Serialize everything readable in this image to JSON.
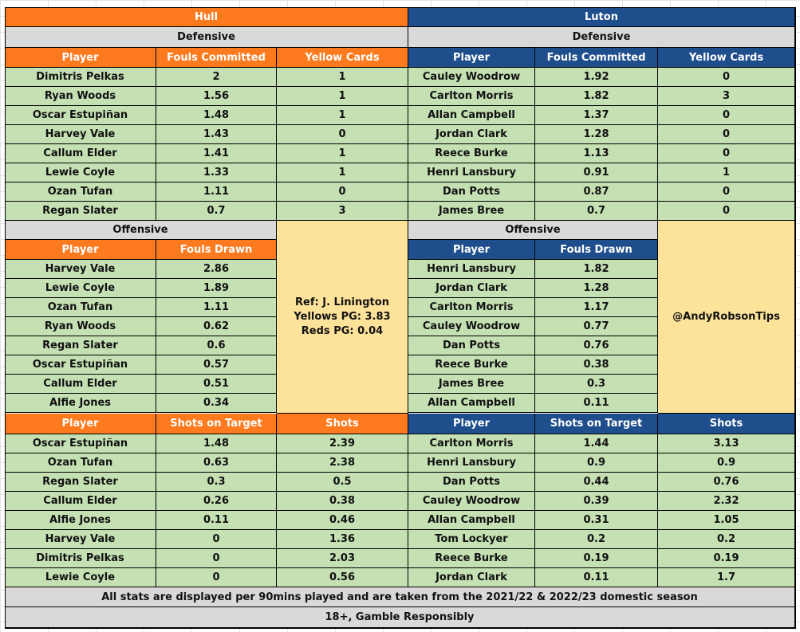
{
  "hull": {
    "name": "Hull",
    "defensive_title": "Defensive",
    "defensive_headers": [
      "Player",
      "Fouls Committed",
      "Yellow Cards"
    ],
    "defensive_rows": [
      [
        "Dimitris Pelkas",
        "2",
        "1"
      ],
      [
        "Ryan Woods",
        "1.56",
        "1"
      ],
      [
        "Oscar Estupiñan",
        "1.48",
        "1"
      ],
      [
        "Harvey Vale",
        "1.43",
        "0"
      ],
      [
        "Callum Elder",
        "1.41",
        "1"
      ],
      [
        "Lewie Coyle",
        "1.33",
        "1"
      ],
      [
        "Ozan Tufan",
        "1.11",
        "0"
      ],
      [
        "Regan Slater",
        "0.7",
        "3"
      ]
    ],
    "offensive_title": "Offensive",
    "offensive_headers": [
      "Player",
      "Fouls Drawn"
    ],
    "offensive_rows": [
      [
        "Harvey Vale",
        "2.86"
      ],
      [
        "Lewie Coyle",
        "1.89"
      ],
      [
        "Ozan Tufan",
        "1.11"
      ],
      [
        "Ryan Woods",
        "0.62"
      ],
      [
        "Regan Slater",
        "0.6"
      ],
      [
        "Oscar Estupiñan",
        "0.57"
      ],
      [
        "Callum Elder",
        "0.51"
      ],
      [
        "Alfie Jones",
        "0.34"
      ]
    ],
    "shots_headers": [
      "Player",
      "Shots on Target",
      "Shots"
    ],
    "shots_rows": [
      [
        "Oscar Estupiñan",
        "1.48",
        "2.39"
      ],
      [
        "Ozan Tufan",
        "0.63",
        "2.38"
      ],
      [
        "Regan Slater",
        "0.3",
        "0.5"
      ],
      [
        "Callum Elder",
        "0.26",
        "0.38"
      ],
      [
        "Alfie Jones",
        "0.11",
        "0.46"
      ],
      [
        "Harvey Vale",
        "0",
        "1.36"
      ],
      [
        "Dimitris Pelkas",
        "0",
        "2.03"
      ],
      [
        "Lewie Coyle",
        "0",
        "0.56"
      ]
    ]
  },
  "luton": {
    "name": "Luton",
    "defensive_title": "Defensive",
    "defensive_headers": [
      "Player",
      "Fouls Committed",
      "Yellow Cards"
    ],
    "defensive_rows": [
      [
        "Cauley Woodrow",
        "1.92",
        "0"
      ],
      [
        "Carlton Morris",
        "1.82",
        "3"
      ],
      [
        "Allan Campbell",
        "1.37",
        "0"
      ],
      [
        "Jordan Clark",
        "1.28",
        "0"
      ],
      [
        "Reece Burke",
        "1.13",
        "0"
      ],
      [
        "Henri Lansbury",
        "0.91",
        "1"
      ],
      [
        "Dan Potts",
        "0.87",
        "0"
      ],
      [
        "James Bree",
        "0.7",
        "0"
      ]
    ],
    "offensive_title": "Offensive",
    "offensive_headers": [
      "Player",
      "Fouls Drawn"
    ],
    "offensive_rows": [
      [
        "Henri Lansbury",
        "1.82"
      ],
      [
        "Jordan Clark",
        "1.28"
      ],
      [
        "Carlton Morris",
        "1.17"
      ],
      [
        "Cauley Woodrow",
        "0.77"
      ],
      [
        "Dan Potts",
        "0.76"
      ],
      [
        "Reece Burke",
        "0.38"
      ],
      [
        "James Bree",
        "0.3"
      ],
      [
        "Allan Campbell",
        "0.11"
      ]
    ],
    "shots_headers": [
      "Player",
      "Shots on Target",
      "Shots"
    ],
    "shots_rows": [
      [
        "Carlton Morris",
        "1.44",
        "3.13"
      ],
      [
        "Henri Lansbury",
        "0.9",
        "0.9"
      ],
      [
        "Dan Potts",
        "0.44",
        "0.76"
      ],
      [
        "Cauley Woodrow",
        "0.39",
        "2.32"
      ],
      [
        "Allan Campbell",
        "0.31",
        "1.05"
      ],
      [
        "Tom Lockyer",
        "0.2",
        "0.2"
      ],
      [
        "Reece Burke",
        "0.19",
        "0.19"
      ],
      [
        "Jordan Clark",
        "0.11",
        "1.7"
      ]
    ]
  },
  "referee": {
    "lines": [
      "Ref: J. Linington",
      "Yellows PG: 3.83",
      "Reds PG: 0.04"
    ]
  },
  "handle": "@AndyRobsonTips",
  "footer": {
    "note": "All stats are displayed per 90mins played and are taken from the 2021/22 & 2022/23 domestic season",
    "disclaimer": "18+, Gamble Responsibly"
  },
  "colors": {
    "hull_header": "#fd7a1f",
    "luton_header": "#1f4e8c",
    "section_grey": "#d9d9d9",
    "data_green": "#c5e0b3",
    "info_yellow": "#fde29a"
  }
}
